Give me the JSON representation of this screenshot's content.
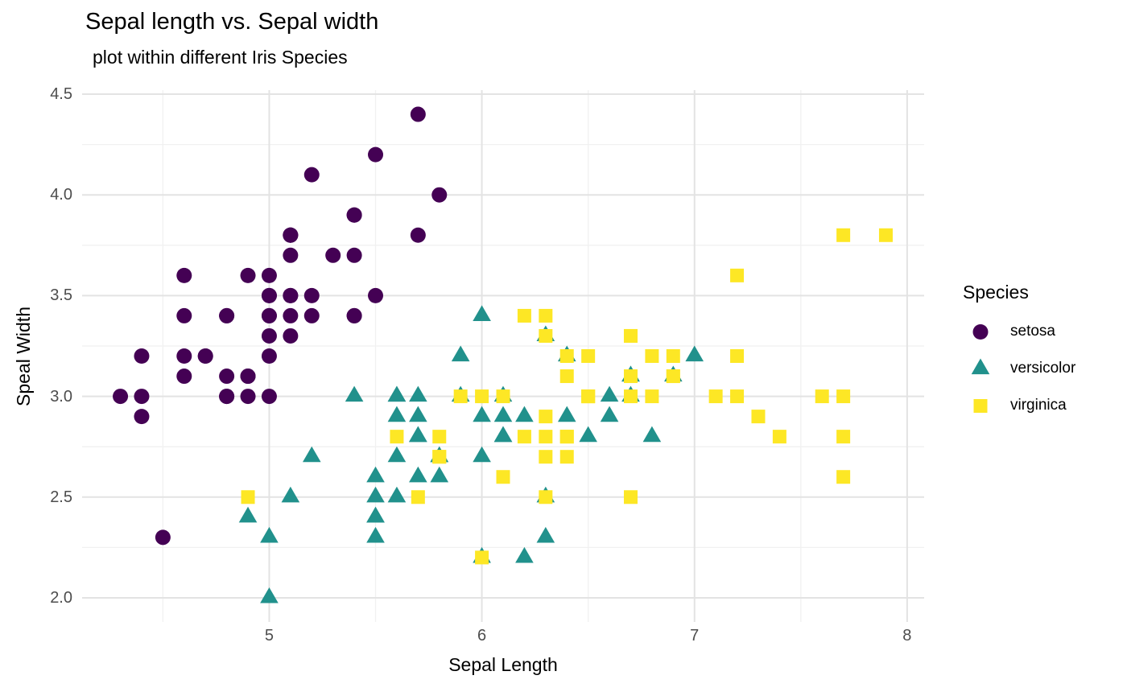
{
  "legend": {
    "title": "Species"
  },
  "colors": {
    "background": "#ffffff",
    "grid_major": "#e3e3e3",
    "grid_minor": "#f1f1f1",
    "tick_text": "#4d4d4d",
    "text": "#000000"
  },
  "chart_data": {
    "type": "scatter",
    "title": "Sepal length vs. Sepal width",
    "subtitle": "plot within different Iris Species",
    "xlabel": "Sepal Length",
    "ylabel": "Speal Width",
    "xlim": [
      4.12,
      8.08
    ],
    "ylim": [
      1.88,
      4.52
    ],
    "grid": true,
    "legend_position": "right",
    "x_ticks": {
      "values": [
        5,
        6,
        7,
        8
      ],
      "labels": [
        "5",
        "6",
        "7",
        "8"
      ],
      "minor": [
        4.5,
        5.5,
        6.5,
        7.5
      ]
    },
    "y_ticks": {
      "values": [
        2.0,
        2.5,
        3.0,
        3.5,
        4.0,
        4.5
      ],
      "labels": [
        "2.0",
        "2.5",
        "3.0",
        "3.5",
        "4.0",
        "4.5"
      ],
      "minor": [
        2.25,
        2.75,
        3.25,
        3.75,
        4.25
      ]
    },
    "series": [
      {
        "name": "setosa",
        "marker": "circle",
        "color": "#440154",
        "points": [
          [
            5.1,
            3.5
          ],
          [
            4.9,
            3.0
          ],
          [
            4.7,
            3.2
          ],
          [
            4.6,
            3.1
          ],
          [
            5.0,
            3.6
          ],
          [
            5.4,
            3.9
          ],
          [
            4.6,
            3.4
          ],
          [
            5.0,
            3.4
          ],
          [
            4.4,
            2.9
          ],
          [
            4.9,
            3.1
          ],
          [
            5.4,
            3.7
          ],
          [
            4.8,
            3.4
          ],
          [
            4.8,
            3.0
          ],
          [
            4.3,
            3.0
          ],
          [
            5.8,
            4.0
          ],
          [
            5.7,
            4.4
          ],
          [
            5.4,
            3.9
          ],
          [
            5.1,
            3.5
          ],
          [
            5.7,
            3.8
          ],
          [
            5.1,
            3.8
          ],
          [
            5.4,
            3.4
          ],
          [
            5.1,
            3.7
          ],
          [
            4.6,
            3.6
          ],
          [
            5.1,
            3.3
          ],
          [
            4.8,
            3.4
          ],
          [
            5.0,
            3.0
          ],
          [
            5.0,
            3.4
          ],
          [
            5.2,
            3.5
          ],
          [
            5.2,
            3.4
          ],
          [
            4.7,
            3.2
          ],
          [
            4.8,
            3.1
          ],
          [
            5.4,
            3.4
          ],
          [
            5.2,
            4.1
          ],
          [
            5.5,
            4.2
          ],
          [
            4.9,
            3.1
          ],
          [
            5.0,
            3.2
          ],
          [
            5.5,
            3.5
          ],
          [
            4.9,
            3.6
          ],
          [
            4.4,
            3.0
          ],
          [
            5.1,
            3.4
          ],
          [
            5.0,
            3.5
          ],
          [
            4.5,
            2.3
          ],
          [
            4.4,
            3.2
          ],
          [
            5.0,
            3.5
          ],
          [
            5.1,
            3.8
          ],
          [
            4.8,
            3.0
          ],
          [
            5.1,
            3.8
          ],
          [
            4.6,
            3.2
          ],
          [
            5.3,
            3.7
          ],
          [
            5.0,
            3.3
          ]
        ]
      },
      {
        "name": "versicolor",
        "marker": "triangle",
        "color": "#21918C",
        "points": [
          [
            7.0,
            3.2
          ],
          [
            6.4,
            3.2
          ],
          [
            6.9,
            3.1
          ],
          [
            5.5,
            2.3
          ],
          [
            6.5,
            2.8
          ],
          [
            5.7,
            2.8
          ],
          [
            6.3,
            3.3
          ],
          [
            4.9,
            2.4
          ],
          [
            6.6,
            2.9
          ],
          [
            5.2,
            2.7
          ],
          [
            5.0,
            2.0
          ],
          [
            5.9,
            3.0
          ],
          [
            6.0,
            2.2
          ],
          [
            6.1,
            2.9
          ],
          [
            5.6,
            2.9
          ],
          [
            6.7,
            3.1
          ],
          [
            5.6,
            3.0
          ],
          [
            5.8,
            2.7
          ],
          [
            6.2,
            2.2
          ],
          [
            5.6,
            2.5
          ],
          [
            5.9,
            3.2
          ],
          [
            6.1,
            2.8
          ],
          [
            6.3,
            2.5
          ],
          [
            6.1,
            2.8
          ],
          [
            6.4,
            2.9
          ],
          [
            6.6,
            3.0
          ],
          [
            6.8,
            2.8
          ],
          [
            6.7,
            3.0
          ],
          [
            6.0,
            2.9
          ],
          [
            5.7,
            2.6
          ],
          [
            5.5,
            2.4
          ],
          [
            5.5,
            2.4
          ],
          [
            5.8,
            2.7
          ],
          [
            6.0,
            2.7
          ],
          [
            5.4,
            3.0
          ],
          [
            6.0,
            3.4
          ],
          [
            6.7,
            3.1
          ],
          [
            6.3,
            2.3
          ],
          [
            5.6,
            3.0
          ],
          [
            5.5,
            2.5
          ],
          [
            5.5,
            2.6
          ],
          [
            6.1,
            3.0
          ],
          [
            5.8,
            2.6
          ],
          [
            5.0,
            2.3
          ],
          [
            5.6,
            2.7
          ],
          [
            5.7,
            3.0
          ],
          [
            5.7,
            2.9
          ],
          [
            6.2,
            2.9
          ],
          [
            5.1,
            2.5
          ],
          [
            5.7,
            2.8
          ]
        ]
      },
      {
        "name": "virginica",
        "marker": "square",
        "color": "#FDE725",
        "points": [
          [
            6.3,
            3.3
          ],
          [
            5.8,
            2.7
          ],
          [
            7.1,
            3.0
          ],
          [
            6.3,
            2.9
          ],
          [
            6.5,
            3.0
          ],
          [
            7.6,
            3.0
          ],
          [
            4.9,
            2.5
          ],
          [
            7.3,
            2.9
          ],
          [
            6.7,
            2.5
          ],
          [
            7.2,
            3.6
          ],
          [
            6.5,
            3.2
          ],
          [
            6.4,
            2.7
          ],
          [
            6.8,
            3.0
          ],
          [
            5.7,
            2.5
          ],
          [
            5.8,
            2.8
          ],
          [
            6.4,
            3.2
          ],
          [
            6.5,
            3.0
          ],
          [
            7.7,
            3.8
          ],
          [
            7.7,
            2.6
          ],
          [
            6.0,
            2.2
          ],
          [
            6.9,
            3.2
          ],
          [
            5.6,
            2.8
          ],
          [
            7.7,
            2.8
          ],
          [
            6.3,
            2.7
          ],
          [
            6.7,
            3.3
          ],
          [
            7.2,
            3.2
          ],
          [
            6.2,
            2.8
          ],
          [
            6.1,
            3.0
          ],
          [
            6.4,
            2.8
          ],
          [
            7.2,
            3.0
          ],
          [
            7.4,
            2.8
          ],
          [
            7.9,
            3.8
          ],
          [
            6.4,
            2.8
          ],
          [
            6.3,
            2.8
          ],
          [
            6.1,
            2.6
          ],
          [
            7.7,
            3.0
          ],
          [
            6.3,
            3.4
          ],
          [
            6.4,
            3.1
          ],
          [
            6.0,
            3.0
          ],
          [
            6.9,
            3.1
          ],
          [
            6.7,
            3.1
          ],
          [
            6.9,
            3.1
          ],
          [
            5.8,
            2.7
          ],
          [
            6.8,
            3.2
          ],
          [
            6.7,
            3.3
          ],
          [
            6.7,
            3.0
          ],
          [
            6.3,
            2.5
          ],
          [
            6.5,
            3.0
          ],
          [
            6.2,
            3.4
          ],
          [
            5.9,
            3.0
          ]
        ]
      }
    ]
  }
}
